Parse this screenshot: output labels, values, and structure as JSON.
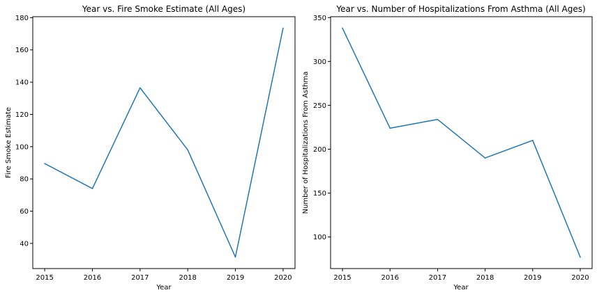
{
  "chart_data": [
    {
      "type": "line",
      "title": "Year vs. Fire Smoke Estimate (All Ages)",
      "xlabel": "Year",
      "ylabel": "Fire Smoke Estimate",
      "x": [
        2015,
        2016,
        2017,
        2018,
        2019,
        2020
      ],
      "series": [
        {
          "values": [
            89.5,
            74,
            136.5,
            98,
            31.5,
            173.5
          ],
          "color": "#1f77b4"
        }
      ],
      "xticks": [
        2015,
        2016,
        2017,
        2018,
        2019,
        2020
      ],
      "yticks": [
        40,
        60,
        80,
        100,
        120,
        140,
        160,
        180
      ],
      "xlim": [
        2014.75,
        2020.25
      ],
      "ylim": [
        24.4,
        180.6
      ],
      "grid": false,
      "legend": "none"
    },
    {
      "type": "line",
      "title": "Year vs. Number of Hospitalizations From Asthma (All Ages)",
      "xlabel": "Year",
      "ylabel": "Number of Hospitalizations From Asthma",
      "x": [
        2015,
        2016,
        2017,
        2018,
        2019,
        2020
      ],
      "series": [
        {
          "values": [
            338,
            224,
            234,
            190,
            210,
            77
          ],
          "color": "#1f77b4"
        }
      ],
      "xticks": [
        2015,
        2016,
        2017,
        2018,
        2019,
        2020
      ],
      "yticks": [
        100,
        150,
        200,
        250,
        300,
        350
      ],
      "xlim": [
        2014.75,
        2020.25
      ],
      "ylim": [
        64,
        351
      ],
      "grid": false,
      "legend": "none"
    }
  ]
}
